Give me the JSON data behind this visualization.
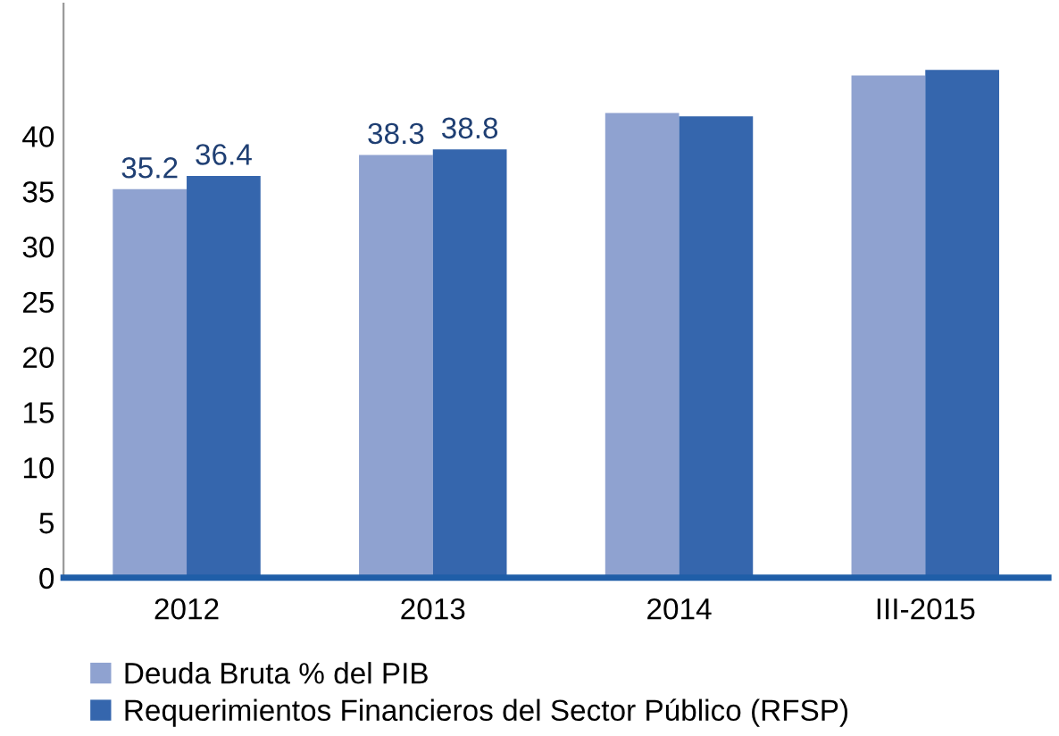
{
  "chart_data": {
    "type": "bar",
    "categories": [
      "2012",
      "2013",
      "2014",
      "III-2015"
    ],
    "series": [
      {
        "name": "Deuda Bruta % del PIB",
        "color": "#8fa2d0",
        "values": [
          35.2,
          38.3,
          42.1,
          45.5
        ],
        "value_labels": [
          "35.2",
          "38.3",
          null,
          null
        ]
      },
      {
        "name": "Requerimientos Financieros del Sector Público (RFSP)",
        "color": "#3566ad",
        "values": [
          36.4,
          38.8,
          41.8,
          46.0
        ],
        "value_labels": [
          "36.4",
          "38.8",
          null,
          null
        ]
      }
    ],
    "ylim": [
      0,
      52
    ],
    "yticks": [
      0,
      5,
      10,
      15,
      20,
      25,
      30,
      35,
      40
    ],
    "grid": false,
    "legend": "bottom"
  }
}
